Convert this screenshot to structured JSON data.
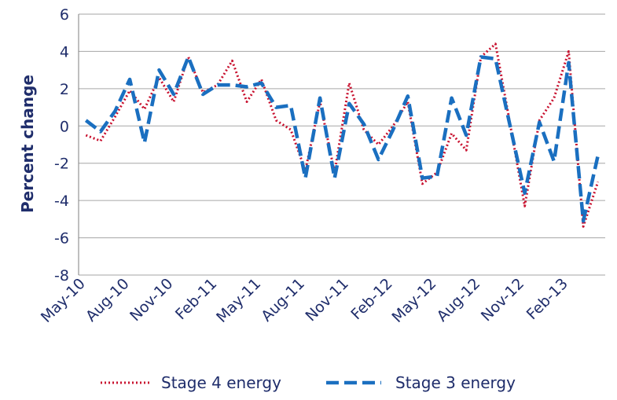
{
  "chart_data": {
    "type": "line",
    "ylabel": "Percent change",
    "xlabel": "",
    "ylim": [
      -8,
      6
    ],
    "yticks": [
      -8,
      -6,
      -4,
      -2,
      0,
      2,
      4,
      6
    ],
    "y_tick_labels": [
      "-8",
      "-6",
      "-4",
      "-2",
      "0",
      "2",
      "4",
      "6"
    ],
    "grid": true,
    "legend_position": "bottom",
    "x": [
      "May-10",
      "Jun-10",
      "Jul-10",
      "Aug-10",
      "Sep-10",
      "Oct-10",
      "Nov-10",
      "Dec-10",
      "Jan-11",
      "Feb-11",
      "Mar-11",
      "Apr-11",
      "May-11",
      "Jun-11",
      "Jul-11",
      "Aug-11",
      "Sep-11",
      "Oct-11",
      "Nov-11",
      "Dec-11",
      "Jan-12",
      "Feb-12",
      "Mar-12",
      "Apr-12",
      "May-12",
      "Jun-12",
      "Jul-12",
      "Aug-12",
      "Sep-12",
      "Oct-12",
      "Nov-12",
      "Dec-12",
      "Jan-13",
      "Feb-13",
      "Mar-13",
      "Apr-13"
    ],
    "x_tick_labels": [
      "May-10",
      "Aug-10",
      "Nov-10",
      "Feb-11",
      "May-11",
      "Aug-11",
      "Nov-11",
      "Feb-12",
      "May-12",
      "Aug-12",
      "Nov-12",
      "Feb-13"
    ],
    "series": [
      {
        "name": "Stage 4 energy",
        "color": "#c8102e",
        "style": "dotted",
        "values": [
          -0.5,
          -0.8,
          0.5,
          1.9,
          0.9,
          2.6,
          1.3,
          3.7,
          1.8,
          2.2,
          3.5,
          1.3,
          2.5,
          0.3,
          -0.2,
          -2.4,
          1.3,
          -2.5,
          2.3,
          -0.2,
          -1.0,
          0.0,
          1.3,
          -3.1,
          -2.5,
          -0.4,
          -1.3,
          3.7,
          4.4,
          0.1,
          -4.3,
          0.3,
          1.5,
          4.0,
          -5.4,
          -3.0
        ]
      },
      {
        "name": "Stage 3 energy",
        "color": "#1a6fc0",
        "style": "dashed",
        "values": [
          0.3,
          -0.3,
          0.8,
          2.5,
          -0.9,
          3.0,
          1.7,
          3.7,
          1.7,
          2.2,
          2.2,
          2.1,
          2.3,
          1.0,
          1.1,
          -2.8,
          1.5,
          -2.8,
          1.2,
          0.1,
          -1.8,
          -0.2,
          1.6,
          -2.8,
          -2.7,
          1.5,
          -0.5,
          3.7,
          3.6,
          0.0,
          -3.6,
          0.2,
          -1.9,
          3.4,
          -5.1,
          -1.6
        ]
      }
    ]
  }
}
